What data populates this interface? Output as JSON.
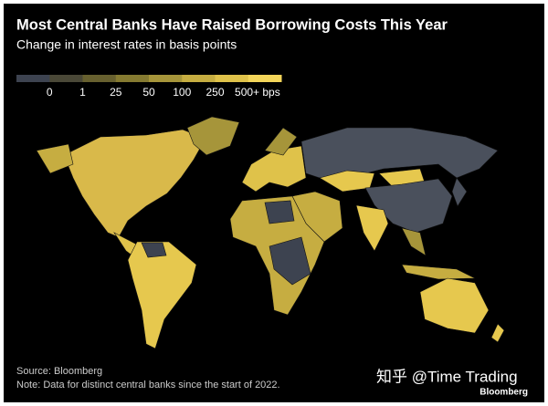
{
  "header": {
    "title": "Most Central Banks Have Raised Borrowing Costs This Year",
    "subtitle": "Change in interest rates in basis points"
  },
  "legend": {
    "labels": [
      "0",
      "1",
      "25",
      "50",
      "100",
      "250",
      "500+ bps"
    ],
    "colors": [
      "#3d4350",
      "#4a4837",
      "#67602f",
      "#857a31",
      "#a6953a",
      "#c6ad41",
      "#dfc24a",
      "#f3d55a"
    ]
  },
  "footer": {
    "source": "Source: Bloomberg",
    "note": "Note: Data for distinct central banks since the start of 2022."
  },
  "watermark": {
    "text": "知乎 @Time Trading",
    "logo": "Bloomberg"
  }
}
